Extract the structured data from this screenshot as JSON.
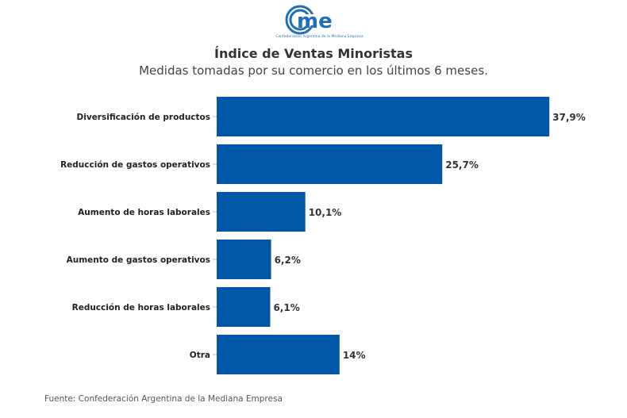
{
  "logo": {
    "text": "cme",
    "tagline": "Confederación Argentina de la Mediana Empresa"
  },
  "chart_data": {
    "type": "bar",
    "orientation": "horizontal",
    "title": "Índice de Ventas Minoristas",
    "subtitle": "Medidas tomadas por su comercio en los últimos 6 meses.",
    "categories": [
      "Diversificación de productos",
      "Reducción de gastos operativos",
      "Aumento de horas laborales",
      "Aumento de gastos operativos",
      "Reducción de horas laborales",
      "Otra"
    ],
    "values": [
      37.9,
      25.7,
      10.1,
      6.2,
      6.1,
      14
    ],
    "value_labels": [
      "37,9%",
      "25,7%",
      "10,1%",
      "6,2%",
      "6,1%",
      "14%"
    ],
    "xlabel": "",
    "ylabel": "",
    "xlim": [
      0,
      40
    ],
    "grid": false,
    "bar_color": "#0057a8"
  },
  "footer": "Fuente: Confederación Argentina de la Mediana Empresa"
}
